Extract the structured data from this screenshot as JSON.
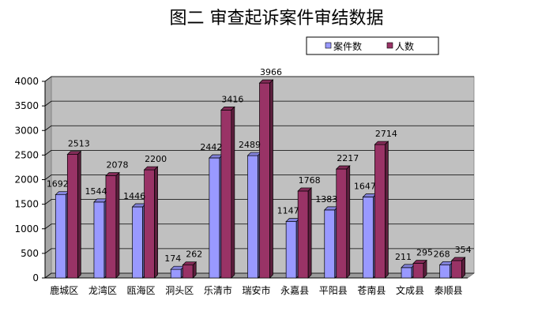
{
  "chart_data": {
    "type": "bar",
    "title": "图二  审查起诉案件审结数据",
    "categories": [
      "鹿城区",
      "龙湾区",
      "瓯海区",
      "洞头区",
      "乐清市",
      "瑞安市",
      "永嘉县",
      "平阳县",
      "苍南县",
      "文成县",
      "泰顺县"
    ],
    "series": [
      {
        "name": "案件数",
        "values": [
          1692,
          1544,
          1446,
          174,
          2442,
          2489,
          1147,
          1383,
          1647,
          211,
          268
        ],
        "color": "#9999ff"
      },
      {
        "name": "人数",
        "values": [
          2513,
          2078,
          2200,
          262,
          3416,
          3966,
          1768,
          2217,
          2714,
          295,
          354
        ],
        "color": "#993366"
      }
    ],
    "y_ticks": [
      "0",
      "500",
      "1000",
      "1500",
      "2000",
      "2500",
      "3000",
      "3500",
      "4000"
    ],
    "ylim": [
      0,
      4000
    ],
    "grid": true,
    "legend_position": "top-right",
    "plot_background": "#c0c0c0"
  }
}
